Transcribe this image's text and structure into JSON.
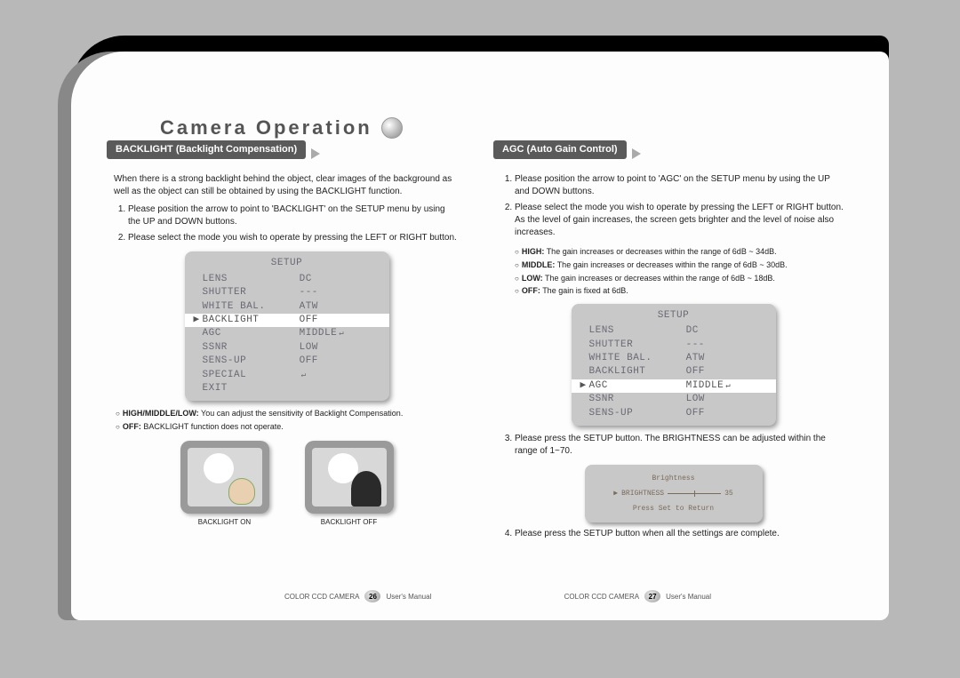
{
  "title": "Camera Operation",
  "left": {
    "header": "BACKLIGHT (Backlight Compensation)",
    "intro": "When there is a strong backlight behind the object, clear images of the background as well as the object can still be obtained by using the BACKLIGHT function.",
    "steps": [
      "Please position the arrow to point to 'BACKLIGHT' on the SETUP menu by using the UP and DOWN buttons.",
      "Please select the mode you wish to operate by pressing the LEFT or RIGHT button."
    ],
    "notes": [
      {
        "k": "HIGH/MIDDLE/LOW:",
        "v": "You can adjust the sensitivity of Backlight Compensation."
      },
      {
        "k": "OFF:",
        "v": "BACKLIGHT function does not operate."
      }
    ],
    "tv_on": "BACKLIGHT ON",
    "tv_off": "BACKLIGHT OFF"
  },
  "right": {
    "header": "AGC (Auto Gain Control)",
    "steps_a": [
      "Please position the arrow to point to 'AGC' on the SETUP menu by using the UP and DOWN buttons.",
      "Please select the mode you wish to operate by pressing the LEFT or RIGHT button.  As the level of gain increases, the screen gets brighter and the level of noise also increases."
    ],
    "notes": [
      {
        "k": "HIGH:",
        "v": "The gain increases or decreases within the range of  6dB ~  34dB."
      },
      {
        "k": "MIDDLE:",
        "v": "The gain increases or decreases within the range of  6dB ~  30dB."
      },
      {
        "k": "LOW:",
        "v": "The gain increases or decreases within the range of  6dB ~  18dB."
      },
      {
        "k": "OFF:",
        "v": "The gain is fixed at 6dB."
      }
    ],
    "step3": "Please press the SETUP button.  The BRIGHTNESS can be adjusted within the range of 1~70.",
    "step4": "Please press the SETUP button when all the settings are complete.",
    "brightness_title": "Brightness",
    "brightness_label": "BRIGHTNESS",
    "brightness_val": "35",
    "brightness_return": "Press Set to Return"
  },
  "osd": {
    "title": "SETUP",
    "rows": [
      {
        "label": "LENS",
        "value": "DC"
      },
      {
        "label": "SHUTTER",
        "value": "---"
      },
      {
        "label": "WHITE BAL.",
        "value": "ATW"
      },
      {
        "label": "BACKLIGHT",
        "value": "OFF"
      },
      {
        "label": "AGC",
        "value": "MIDDLE",
        "enter": true
      },
      {
        "label": "SSNR",
        "value": "LOW"
      },
      {
        "label": "SENS-UP",
        "value": "OFF"
      },
      {
        "label": "SPECIAL",
        "value": "",
        "enter": true
      },
      {
        "label": "EXIT",
        "value": ""
      }
    ],
    "left_sel": 3,
    "right_sel": 4,
    "right_visible": 7
  },
  "footer": {
    "product": "COLOR CCD CAMERA",
    "manual": "User's Manual",
    "page_left": "26",
    "page_right": "27"
  }
}
